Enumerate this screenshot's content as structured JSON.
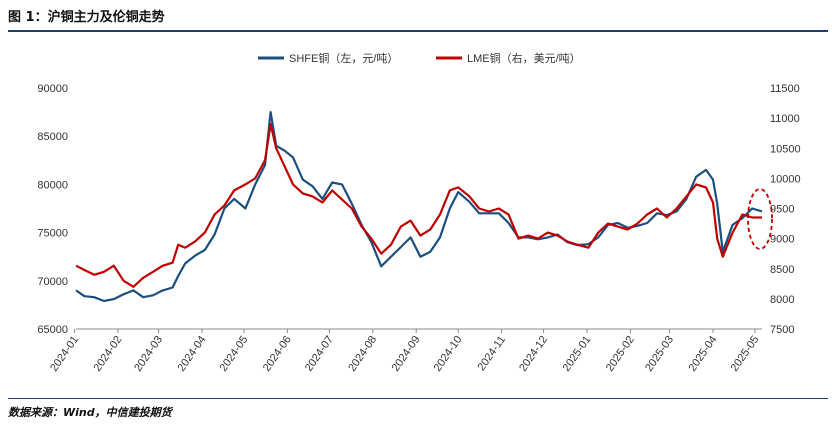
{
  "figure_title": "图 1：沪铜主力及伦铜走势",
  "source_note": "数据来源：Wind，中信建投期货",
  "colors": {
    "shfe": "#1b4f7f",
    "lme": "#c00000",
    "rule": "#1f3f73",
    "marker": "#c00000"
  },
  "chart_data": {
    "type": "line",
    "title": "",
    "legend_position": "top-center",
    "grid": false,
    "x_range": [
      "2024-01-02",
      "2025-05-06"
    ],
    "x_ticks": [
      "2024-01",
      "2024-02",
      "2024-03",
      "2024-04",
      "2024-05",
      "2024-06",
      "2024-07",
      "2024-08",
      "2024-09",
      "2024-10",
      "2024-11",
      "2024-12",
      "2025-01",
      "2025-02",
      "2025-03",
      "2025-04",
      "2025-05"
    ],
    "y_left": {
      "min": 65000,
      "max": 90000,
      "ticks": [
        "65000",
        "70000",
        "75000",
        "80000",
        "85000",
        "90000"
      ]
    },
    "y_right": {
      "min": 7500,
      "max": 11500,
      "ticks": [
        "7500",
        "8000",
        "8500",
        "9000",
        "9500",
        "10000",
        "10500",
        "11000",
        "11500"
      ]
    },
    "annotation": "dashed-ellipse-highlight",
    "series": [
      {
        "name": "SHFE铜（左，元/吨）",
        "axis": "left",
        "color": "#1b4f7f",
        "points": [
          [
            "2024-01-02",
            69000
          ],
          [
            "2024-01-08",
            68400
          ],
          [
            "2024-01-15",
            68300
          ],
          [
            "2024-01-22",
            67900
          ],
          [
            "2024-01-29",
            68100
          ],
          [
            "2024-02-05",
            68600
          ],
          [
            "2024-02-12",
            69000
          ],
          [
            "2024-02-19",
            68300
          ],
          [
            "2024-02-26",
            68500
          ],
          [
            "2024-03-04",
            69000
          ],
          [
            "2024-03-11",
            69300
          ],
          [
            "2024-03-15",
            70500
          ],
          [
            "2024-03-20",
            71800
          ],
          [
            "2024-03-27",
            72600
          ],
          [
            "2024-04-03",
            73200
          ],
          [
            "2024-04-10",
            74800
          ],
          [
            "2024-04-17",
            77500
          ],
          [
            "2024-04-24",
            78500
          ],
          [
            "2024-05-02",
            77500
          ],
          [
            "2024-05-09",
            80000
          ],
          [
            "2024-05-16",
            82000
          ],
          [
            "2024-05-20",
            87500
          ],
          [
            "2024-05-24",
            84000
          ],
          [
            "2024-05-30",
            83500
          ],
          [
            "2024-06-05",
            82800
          ],
          [
            "2024-06-12",
            80500
          ],
          [
            "2024-06-19",
            79800
          ],
          [
            "2024-06-26",
            78500
          ],
          [
            "2024-07-03",
            80200
          ],
          [
            "2024-07-10",
            80000
          ],
          [
            "2024-07-17",
            78000
          ],
          [
            "2024-07-24",
            75800
          ],
          [
            "2024-07-31",
            74000
          ],
          [
            "2024-08-07",
            71500
          ],
          [
            "2024-08-14",
            72500
          ],
          [
            "2024-08-21",
            73500
          ],
          [
            "2024-08-28",
            74500
          ],
          [
            "2024-09-04",
            72500
          ],
          [
            "2024-09-11",
            73000
          ],
          [
            "2024-09-18",
            74500
          ],
          [
            "2024-09-25",
            77500
          ],
          [
            "2024-10-01",
            79200
          ],
          [
            "2024-10-09",
            78200
          ],
          [
            "2024-10-16",
            77000
          ],
          [
            "2024-10-23",
            77000
          ],
          [
            "2024-10-30",
            77000
          ],
          [
            "2024-11-06",
            76000
          ],
          [
            "2024-11-13",
            74500
          ],
          [
            "2024-11-20",
            74500
          ],
          [
            "2024-11-27",
            74300
          ],
          [
            "2024-12-04",
            74500
          ],
          [
            "2024-12-11",
            74800
          ],
          [
            "2024-12-18",
            74000
          ],
          [
            "2024-12-25",
            73700
          ],
          [
            "2025-01-02",
            73800
          ],
          [
            "2025-01-09",
            74500
          ],
          [
            "2025-01-16",
            75800
          ],
          [
            "2025-01-23",
            76000
          ],
          [
            "2025-01-30",
            75500
          ],
          [
            "2025-02-06",
            75700
          ],
          [
            "2025-02-13",
            76000
          ],
          [
            "2025-02-20",
            77000
          ],
          [
            "2025-02-27",
            76800
          ],
          [
            "2025-03-06",
            77200
          ],
          [
            "2025-03-13",
            78500
          ],
          [
            "2025-03-20",
            80800
          ],
          [
            "2025-03-27",
            81500
          ],
          [
            "2025-04-01",
            80500
          ],
          [
            "2025-04-04",
            78000
          ],
          [
            "2025-04-08",
            73000
          ],
          [
            "2025-04-15",
            75800
          ],
          [
            "2025-04-22",
            76500
          ],
          [
            "2025-04-29",
            77500
          ],
          [
            "2025-05-06",
            77200
          ]
        ]
      },
      {
        "name": "LME铜（右，美元/吨）",
        "axis": "right",
        "color": "#c00000",
        "points": [
          [
            "2024-01-02",
            8550
          ],
          [
            "2024-01-08",
            8480
          ],
          [
            "2024-01-15",
            8400
          ],
          [
            "2024-01-22",
            8450
          ],
          [
            "2024-01-29",
            8550
          ],
          [
            "2024-02-05",
            8300
          ],
          [
            "2024-02-12",
            8200
          ],
          [
            "2024-02-19",
            8350
          ],
          [
            "2024-02-26",
            8450
          ],
          [
            "2024-03-04",
            8550
          ],
          [
            "2024-03-11",
            8600
          ],
          [
            "2024-03-15",
            8900
          ],
          [
            "2024-03-20",
            8850
          ],
          [
            "2024-03-27",
            8950
          ],
          [
            "2024-04-03",
            9100
          ],
          [
            "2024-04-10",
            9400
          ],
          [
            "2024-04-17",
            9550
          ],
          [
            "2024-04-24",
            9800
          ],
          [
            "2024-05-02",
            9900
          ],
          [
            "2024-05-09",
            10000
          ],
          [
            "2024-05-16",
            10300
          ],
          [
            "2024-05-20",
            10900
          ],
          [
            "2024-05-24",
            10500
          ],
          [
            "2024-05-30",
            10200
          ],
          [
            "2024-06-05",
            9900
          ],
          [
            "2024-06-12",
            9750
          ],
          [
            "2024-06-19",
            9700
          ],
          [
            "2024-06-26",
            9600
          ],
          [
            "2024-07-03",
            9800
          ],
          [
            "2024-07-10",
            9650
          ],
          [
            "2024-07-17",
            9500
          ],
          [
            "2024-07-24",
            9200
          ],
          [
            "2024-07-31",
            9000
          ],
          [
            "2024-08-07",
            8750
          ],
          [
            "2024-08-14",
            8900
          ],
          [
            "2024-08-21",
            9200
          ],
          [
            "2024-08-28",
            9300
          ],
          [
            "2024-09-04",
            9050
          ],
          [
            "2024-09-11",
            9150
          ],
          [
            "2024-09-18",
            9400
          ],
          [
            "2024-09-25",
            9800
          ],
          [
            "2024-10-01",
            9850
          ],
          [
            "2024-10-09",
            9700
          ],
          [
            "2024-10-16",
            9500
          ],
          [
            "2024-10-23",
            9450
          ],
          [
            "2024-10-30",
            9500
          ],
          [
            "2024-11-06",
            9400
          ],
          [
            "2024-11-13",
            9000
          ],
          [
            "2024-11-20",
            9050
          ],
          [
            "2024-11-27",
            9000
          ],
          [
            "2024-12-04",
            9100
          ],
          [
            "2024-12-11",
            9050
          ],
          [
            "2024-12-18",
            8950
          ],
          [
            "2024-12-25",
            8900
          ],
          [
            "2025-01-02",
            8850
          ],
          [
            "2025-01-09",
            9100
          ],
          [
            "2025-01-16",
            9250
          ],
          [
            "2025-01-23",
            9200
          ],
          [
            "2025-01-30",
            9150
          ],
          [
            "2025-02-06",
            9250
          ],
          [
            "2025-02-13",
            9400
          ],
          [
            "2025-02-20",
            9500
          ],
          [
            "2025-02-27",
            9350
          ],
          [
            "2025-03-06",
            9500
          ],
          [
            "2025-03-13",
            9700
          ],
          [
            "2025-03-20",
            9900
          ],
          [
            "2025-03-27",
            9850
          ],
          [
            "2025-04-01",
            9600
          ],
          [
            "2025-04-04",
            9000
          ],
          [
            "2025-04-08",
            8700
          ],
          [
            "2025-04-15",
            9100
          ],
          [
            "2025-04-22",
            9400
          ],
          [
            "2025-04-29",
            9350
          ],
          [
            "2025-05-06",
            9350
          ]
        ]
      }
    ]
  }
}
